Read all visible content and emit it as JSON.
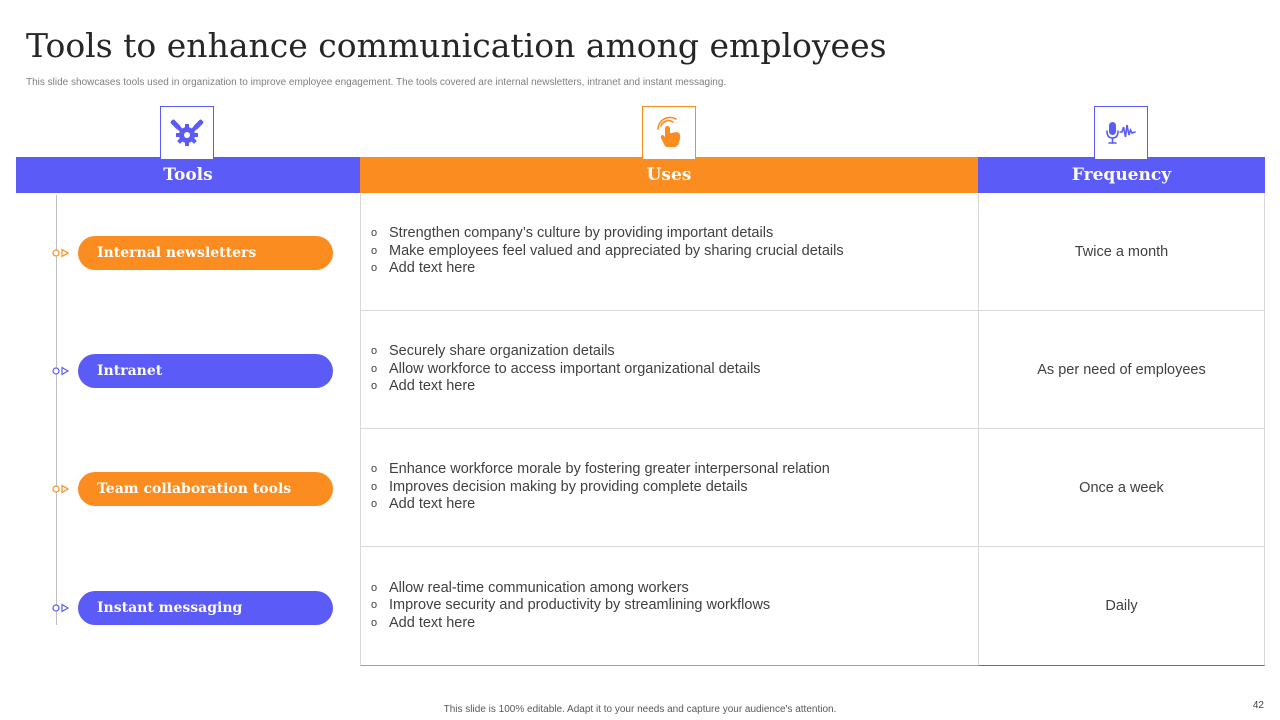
{
  "title": "Tools to enhance communication among employees",
  "subtitle": "This slide showcases tools used in organization to improve employee engagement. The tools covered are internal newsletters, intranet and instant messaging.",
  "headers": {
    "tools": "Tools",
    "uses": "Uses",
    "frequency": "Frequency"
  },
  "icons": {
    "tools": "gear-wrench-icon",
    "uses": "tap-hand-icon",
    "frequency": "microphone-icon"
  },
  "rows": [
    {
      "tool": "Internal newsletters",
      "uses": [
        "Strengthen company’s culture by providing important details",
        "Make employees feel valued and appreciated by sharing crucial details",
        "Add text here"
      ],
      "frequency": "Twice a month"
    },
    {
      "tool": "Intranet",
      "uses": [
        "Securely share organization details",
        "Allow workforce to access important organizational details",
        "Add text here"
      ],
      "frequency": "As per need of employees"
    },
    {
      "tool": "Team collaboration tools",
      "uses": [
        "Enhance workforce morale by fostering greater interpersonal relation",
        "Improves decision making by providing complete details",
        "Add text here"
      ],
      "frequency": "Once a week"
    },
    {
      "tool": "Instant messaging",
      "uses": [
        "Allow real-time communication among workers",
        "Improve security and productivity by streamlining workflows",
        "Add text here"
      ],
      "frequency": "Daily"
    }
  ],
  "bullet_glyph": "o",
  "footer": "This slide is 100% editable. Adapt it to your needs and capture your audience's attention.",
  "page_number": "42",
  "colors": {
    "blue": "#5b5bf7",
    "orange": "#fb8c1f",
    "text": "#404040"
  }
}
